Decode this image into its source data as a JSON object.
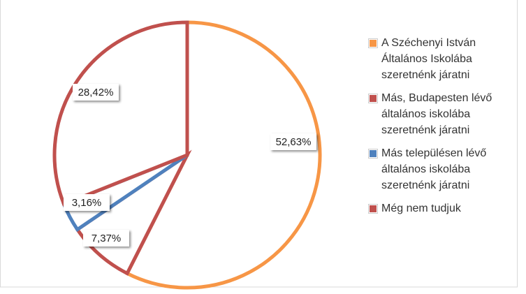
{
  "chart_data": {
    "type": "pie",
    "categories": [
      "A Széchenyi István Általános Iskolába szeretnénk járatni",
      "Más, Budapesten lévő általános iskolába szeretnénk járatni",
      "Más településen lévő általános iskolába szeretnénk járatni",
      "Még nem tudjuk"
    ],
    "values": [
      52.63,
      7.37,
      3.16,
      28.42
    ],
    "value_labels": [
      "52,63%",
      "7,37%",
      "3,16%",
      "28,42%"
    ],
    "colors": [
      "#f79646",
      "#c0504d",
      "#4f81bd",
      "#c0504d"
    ],
    "legend": "right"
  }
}
